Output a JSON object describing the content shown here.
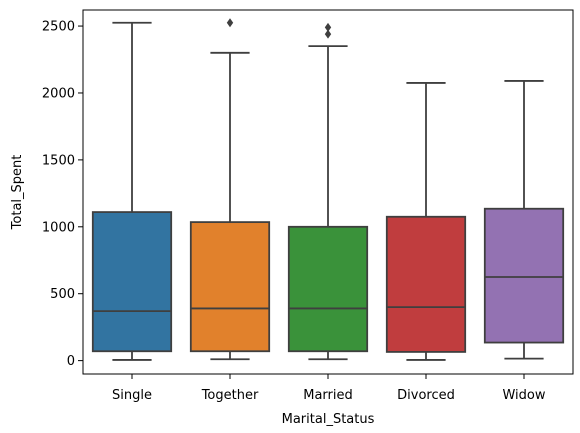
{
  "chart_data": {
    "type": "boxplot",
    "xlabel": "Marital_Status",
    "ylabel": "Total_Spent",
    "ylim": [
      -100,
      2620
    ],
    "yticks": [
      0,
      500,
      1000,
      1500,
      2000,
      2500
    ],
    "grid": false,
    "legend": "none",
    "categories": [
      "Single",
      "Together",
      "Married",
      "Divorced",
      "Widow"
    ],
    "boxes": [
      {
        "category": "Single",
        "color": "#3274a1",
        "whisker_low": 5,
        "q1": 70,
        "median": 370,
        "q3": 1110,
        "whisker_high": 2525,
        "outliers": []
      },
      {
        "category": "Together",
        "color": "#e1812c",
        "whisker_low": 10,
        "q1": 70,
        "median": 390,
        "q3": 1035,
        "whisker_high": 2300,
        "outliers": [
          2525
        ]
      },
      {
        "category": "Married",
        "color": "#3a923a",
        "whisker_low": 10,
        "q1": 70,
        "median": 390,
        "q3": 1000,
        "whisker_high": 2350,
        "outliers": [
          2440,
          2490
        ]
      },
      {
        "category": "Divorced",
        "color": "#c03d3e",
        "whisker_low": 5,
        "q1": 65,
        "median": 400,
        "q3": 1075,
        "whisker_high": 2075,
        "outliers": []
      },
      {
        "category": "Widow",
        "color": "#9372b2",
        "whisker_low": 15,
        "q1": 135,
        "median": 625,
        "q3": 1135,
        "whisker_high": 2090,
        "outliers": []
      }
    ]
  }
}
